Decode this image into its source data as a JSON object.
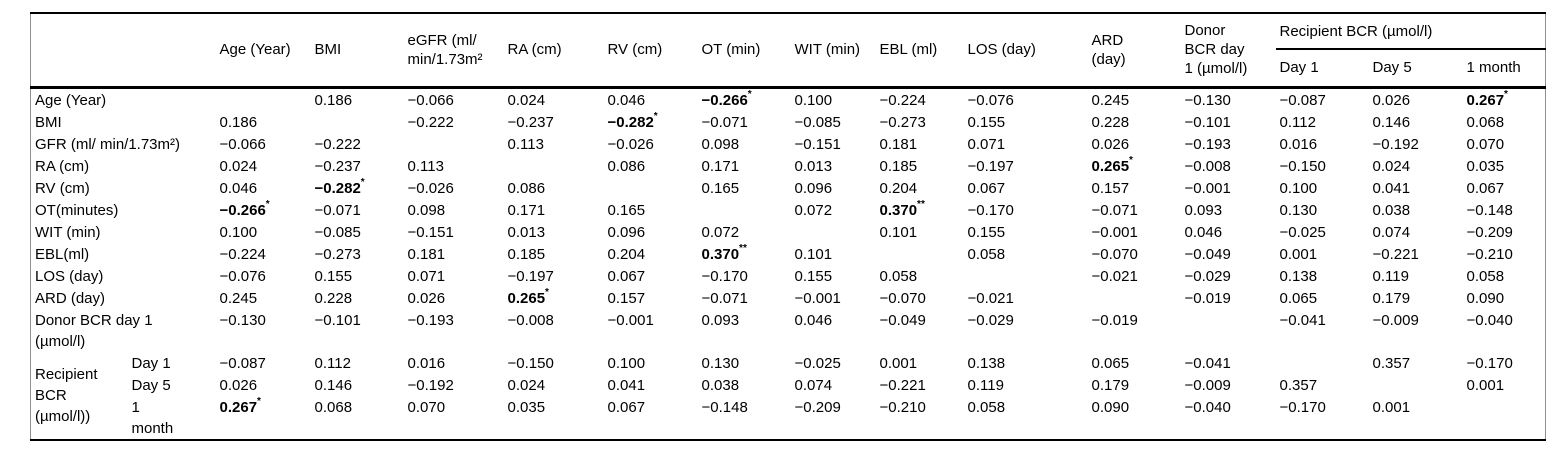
{
  "table": {
    "header": {
      "corner": "",
      "columns": [
        "Age (Year)",
        "BMI",
        "eGFR (ml/\nmin/1.73m²",
        "RA (cm)",
        "RV (cm)",
        "OT (min)",
        "WIT (min)",
        "EBL (ml)",
        "LOS (day)",
        "ARD\n(day)",
        "Donor\nBCR day\n1 (µmol/l)"
      ],
      "group": {
        "label": "Recipient BCR (µmol/l)",
        "subcolumns": [
          "Day 1",
          "Day 5",
          "1 month"
        ]
      }
    },
    "rows": [
      {
        "label": "Age (Year)",
        "cells": [
          "",
          "0.186",
          "−0.066",
          "0.024",
          "0.046",
          "−0.266*",
          "0.100",
          "−0.224",
          "−0.076",
          "0.245",
          "−0.130",
          "−0.087",
          "0.026",
          "0.267*"
        ],
        "bold": [
          5,
          13
        ]
      },
      {
        "label": "BMI",
        "cells": [
          "0.186",
          "",
          "−0.222",
          "−0.237",
          "−0.282*",
          "−0.071",
          "−0.085",
          "−0.273",
          "0.155",
          "0.228",
          "−0.101",
          "0.112",
          "0.146",
          "0.068"
        ],
        "bold": [
          4
        ]
      },
      {
        "label": "GFR (ml/ min/1.73m²)",
        "cells": [
          "−0.066",
          "−0.222",
          "",
          "0.113",
          "−0.026",
          "0.098",
          "−0.151",
          "0.181",
          "0.071",
          "0.026",
          "−0.193",
          "0.016",
          "−0.192",
          "0.070"
        ],
        "bold": []
      },
      {
        "label": "RA (cm)",
        "cells": [
          "0.024",
          "−0.237",
          "0.113",
          "",
          "0.086",
          "0.171",
          "0.013",
          "0.185",
          "−0.197",
          "0.265*",
          "−0.008",
          "−0.150",
          "0.024",
          "0.035"
        ],
        "bold": [
          9
        ]
      },
      {
        "label": "RV (cm)",
        "cells": [
          "0.046",
          "−0.282*",
          "−0.026",
          "0.086",
          "",
          "0.165",
          "0.096",
          "0.204",
          "0.067",
          "0.157",
          "−0.001",
          "0.100",
          "0.041",
          "0.067"
        ],
        "bold": [
          1
        ]
      },
      {
        "label": "OT(minutes)",
        "cells": [
          "−0.266*",
          "−0.071",
          "0.098",
          "0.171",
          "0.165",
          "",
          "0.072",
          "0.370**",
          "−0.170",
          "−0.071",
          "0.093",
          "0.130",
          "0.038",
          "−0.148"
        ],
        "bold": [
          0,
          7
        ]
      },
      {
        "label": "WIT (min)",
        "cells": [
          "0.100",
          "−0.085",
          "−0.151",
          "0.013",
          "0.096",
          "0.072",
          "",
          "0.101",
          "0.155",
          "−0.001",
          "0.046",
          "−0.025",
          "0.074",
          "−0.209"
        ],
        "bold": []
      },
      {
        "label": "EBL(ml)",
        "cells": [
          "−0.224",
          "−0.273",
          "0.181",
          "0.185",
          "0.204",
          "0.370**",
          "0.101",
          "",
          "0.058",
          "−0.070",
          "−0.049",
          "0.001",
          "−0.221",
          "−0.210"
        ],
        "bold": [
          5
        ]
      },
      {
        "label": "LOS (day)",
        "cells": [
          "−0.076",
          "0.155",
          "0.071",
          "−0.197",
          "0.067",
          "−0.170",
          "0.155",
          "0.058",
          "",
          "−0.021",
          "−0.029",
          "0.138",
          "0.119",
          "0.058"
        ],
        "bold": []
      },
      {
        "label": "ARD (day)",
        "cells": [
          "0.245",
          "0.228",
          "0.026",
          "0.265*",
          "0.157",
          "−0.071",
          "−0.001",
          "−0.070",
          "−0.021",
          "",
          "−0.019",
          "0.065",
          "0.179",
          "0.090"
        ],
        "bold": [
          3
        ]
      },
      {
        "label": "Donor BCR day 1\n(µmol/l)",
        "cells": [
          "−0.130",
          "−0.101",
          "−0.193",
          "−0.008",
          "−0.001",
          "0.093",
          "0.046",
          "−0.049",
          "−0.029",
          "−0.019",
          "",
          "−0.041",
          "−0.009",
          "−0.040"
        ],
        "bold": []
      }
    ],
    "group_rows": {
      "label": "Recipient\nBCR\n(µmol/l))",
      "rows": [
        {
          "label": "Day 1",
          "cells": [
            "−0.087",
            "0.112",
            "0.016",
            "−0.150",
            "0.100",
            "0.130",
            "−0.025",
            "0.001",
            "0.138",
            "0.065",
            "−0.041",
            "",
            "0.357",
            "−0.170"
          ],
          "bold": []
        },
        {
          "label": "Day 5",
          "cells": [
            "0.026",
            "0.146",
            "−0.192",
            "0.024",
            "0.041",
            "0.038",
            "0.074",
            "−0.221",
            "0.119",
            "0.179",
            "−0.009",
            "0.357",
            "",
            "0.001"
          ],
          "bold": []
        },
        {
          "label": "1\nmonth",
          "cells": [
            "0.267*",
            "0.068",
            "0.070",
            "0.035",
            "0.067",
            "−0.148",
            "−0.209",
            "−0.210",
            "0.058",
            "0.090",
            "−0.040",
            "−0.170",
            "0.001",
            ""
          ],
          "bold": [
            0
          ]
        }
      ]
    }
  }
}
